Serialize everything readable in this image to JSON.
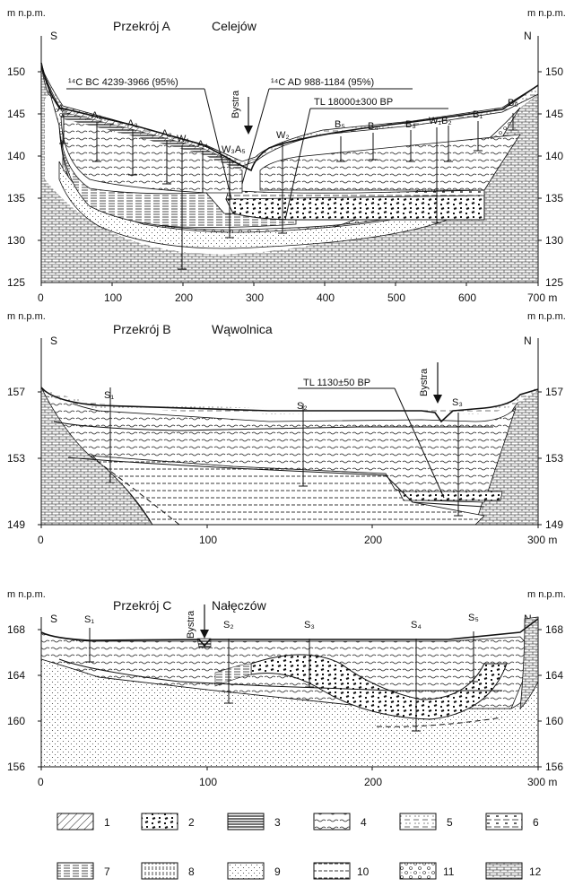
{
  "unit_left": "m n.p.m.",
  "unit_right": "m n.p.m.",
  "river": "Bystra",
  "x_unit": "m",
  "sections": [
    {
      "id": "A",
      "title": "Przekrój A",
      "place": "Celejów",
      "south": "S",
      "north": "N",
      "y_ticks": [
        "150",
        "145",
        "140",
        "135",
        "130",
        "125"
      ],
      "x_ticks": [
        "0",
        "100",
        "200",
        "300",
        "400",
        "500",
        "600",
        "700 m"
      ],
      "dating": [
        "¹⁴C BC 4239-3966 (95%)",
        "¹⁴C AD 988-1184 (95%)",
        "TL 18000±300 BP"
      ],
      "boreholes": [
        "A₆",
        "A₁",
        "A₂",
        "A₃",
        "W₁",
        "A₄",
        "W₃A₅",
        "W₂",
        "B₅",
        "B₄",
        "B₃",
        "W₁B₂",
        "B₁",
        "B₀"
      ]
    },
    {
      "id": "B",
      "title": "Przekrój B",
      "place": "Wąwolnica",
      "south": "S",
      "north": "N",
      "y_ticks": [
        "157",
        "153",
        "149"
      ],
      "x_ticks": [
        "0",
        "100",
        "200",
        "300 m"
      ],
      "dating": [
        "TL 1130±50 BP"
      ],
      "boreholes": [
        "S₁",
        "S₂",
        "S₃"
      ]
    },
    {
      "id": "C",
      "title": "Przekrój C",
      "place": "Nałęczów",
      "south": "S",
      "north": "N",
      "y_ticks": [
        "168",
        "164",
        "160",
        "156"
      ],
      "x_ticks": [
        "0",
        "100",
        "200",
        "300 m"
      ],
      "boreholes": [
        "S₁",
        "S₂",
        "S₃",
        "S₄",
        "S₅"
      ]
    }
  ],
  "legend": [
    "1",
    "2",
    "3",
    "4",
    "5",
    "6",
    "7",
    "8",
    "9",
    "10",
    "11",
    "12"
  ]
}
